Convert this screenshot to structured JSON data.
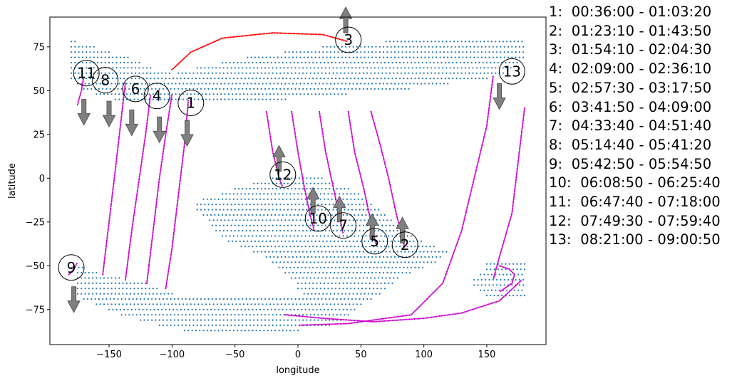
{
  "chart_data": {
    "type": "scatter",
    "xlabel": "longitude",
    "ylabel": "latitude",
    "xlim": [
      -197,
      197
    ],
    "ylim": [
      -95,
      92
    ],
    "xticks": [
      -150,
      -100,
      -50,
      0,
      50,
      100,
      150
    ],
    "yticks": [
      75,
      50,
      25,
      0,
      -25,
      -50,
      -75
    ],
    "grid": false,
    "colors": {
      "coverage": "#1f77b4",
      "track": "#cc00cc",
      "highlight_track": "#ff0000",
      "arrow": "#808080"
    },
    "coverage_regions": [
      {
        "name": "north-band",
        "lat_rows": [
          [
            78,
            -180,
            -175
          ],
          [
            78,
            70,
            180
          ],
          [
            75,
            -180,
            -160
          ],
          [
            75,
            20,
            180
          ],
          [
            72,
            -180,
            -150
          ],
          [
            72,
            -10,
            180
          ],
          [
            69,
            -180,
            -135
          ],
          [
            69,
            -40,
            180
          ],
          [
            66,
            -180,
            -125
          ],
          [
            66,
            -60,
            175
          ],
          [
            63,
            -180,
            -115
          ],
          [
            63,
            -80,
            170
          ],
          [
            60,
            -180,
            -100
          ],
          [
            60,
            -95,
            165
          ],
          [
            57,
            -180,
            150
          ],
          [
            54,
            -175,
            120
          ],
          [
            51,
            -170,
            90
          ],
          [
            48,
            -160,
            40
          ],
          [
            45,
            -145,
            -10
          ]
        ]
      },
      {
        "name": "south-region",
        "lat_rows": [
          [
            0,
            -20,
            20
          ],
          [
            -3,
            -35,
            30
          ],
          [
            -6,
            -50,
            40
          ],
          [
            -9,
            -60,
            50
          ],
          [
            -12,
            -75,
            55
          ],
          [
            -15,
            -80,
            60
          ],
          [
            -18,
            -80,
            65
          ],
          [
            -21,
            -75,
            70
          ],
          [
            -24,
            -70,
            75
          ],
          [
            -27,
            -68,
            80
          ],
          [
            -30,
            -65,
            85
          ],
          [
            -33,
            -60,
            90
          ],
          [
            -36,
            -55,
            100
          ],
          [
            -39,
            -45,
            110
          ],
          [
            -42,
            -35,
            120
          ],
          [
            -45,
            -25,
            115
          ],
          [
            -48,
            -20,
            110
          ],
          [
            -51,
            -180,
            -170
          ],
          [
            -51,
            -15,
            100
          ],
          [
            -54,
            -175,
            -160
          ],
          [
            -54,
            -10,
            90
          ],
          [
            -57,
            -175,
            -140
          ],
          [
            -57,
            -5,
            80
          ],
          [
            -60,
            -175,
            -120
          ],
          [
            -60,
            0,
            75
          ],
          [
            -63,
            -175,
            -110
          ],
          [
            -63,
            0,
            70
          ],
          [
            -66,
            -175,
            -100
          ],
          [
            -66,
            5,
            65
          ],
          [
            -69,
            -170,
            60
          ],
          [
            -72,
            -160,
            50
          ],
          [
            -75,
            -150,
            45
          ],
          [
            -78,
            -140,
            40
          ],
          [
            -81,
            -125,
            35
          ],
          [
            -84,
            -110,
            25
          ],
          [
            -87,
            -90,
            0
          ]
        ]
      },
      {
        "name": "southeast-patch",
        "lat_rows": [
          [
            -49,
            150,
            180
          ],
          [
            -52,
            150,
            180
          ],
          [
            -55,
            145,
            180
          ],
          [
            -58,
            140,
            180
          ],
          [
            -61,
            140,
            180
          ],
          [
            -64,
            145,
            180
          ],
          [
            -67,
            150,
            180
          ]
        ]
      }
    ],
    "tracks": [
      {
        "id": "1",
        "time": "00:36:00 - 01:03:20",
        "points": [
          [
            -105,
            -63
          ],
          [
            -100,
            -40
          ],
          [
            -95,
            -10
          ],
          [
            -90,
            20
          ],
          [
            -87,
            45
          ]
        ],
        "label_at": [
          -85,
          43
        ],
        "arrow": {
          "at": [
            -88,
            33
          ],
          "dir": "down"
        }
      },
      {
        "id": "2",
        "time": "01:23:10 - 01:43:50",
        "points": [
          [
            58,
            38
          ],
          [
            65,
            20
          ],
          [
            72,
            0
          ],
          [
            78,
            -20
          ],
          [
            85,
            -40
          ]
        ],
        "label_at": [
          85,
          -38
        ],
        "arrow": {
          "at": [
            83,
            -37
          ],
          "dir": "up"
        }
      },
      {
        "id": "3",
        "time": "01:54:10 - 02:04:30",
        "color_key": "highlight_track",
        "points": [
          [
            -100,
            62
          ],
          [
            -85,
            72
          ],
          [
            -60,
            80
          ],
          [
            -20,
            83
          ],
          [
            20,
            82
          ],
          [
            40,
            78
          ]
        ],
        "label_at": [
          40,
          79
        ],
        "arrow": {
          "at": [
            38,
            83
          ],
          "dir": "up"
        }
      },
      {
        "id": "4",
        "time": "02:09:00 - 02:36:10",
        "points": [
          [
            -120,
            -60
          ],
          [
            -115,
            -30
          ],
          [
            -110,
            0
          ],
          [
            -105,
            25
          ],
          [
            -100,
            48
          ]
        ],
        "label_at": [
          -112,
          47
        ],
        "arrow": {
          "at": [
            -110,
            35
          ],
          "dir": "down"
        }
      },
      {
        "id": "5",
        "time": "02:57:30 - 03:17:50",
        "points": [
          [
            40,
            38
          ],
          [
            45,
            15
          ],
          [
            52,
            -5
          ],
          [
            58,
            -25
          ],
          [
            62,
            -38
          ]
        ],
        "label_at": [
          61,
          -36
        ],
        "arrow": {
          "at": [
            59,
            -35
          ],
          "dir": "up"
        }
      },
      {
        "id": "6",
        "time": "03:41:50 - 04:09:00",
        "points": [
          [
            -137,
            -58
          ],
          [
            -132,
            -30
          ],
          [
            -126,
            0
          ],
          [
            -121,
            25
          ],
          [
            -117,
            48
          ]
        ],
        "label_at": [
          -129,
          51
        ],
        "arrow": {
          "at": [
            -132,
            39
          ],
          "dir": "down"
        }
      },
      {
        "id": "7",
        "time": "04:33:40 - 04:51:40",
        "points": [
          [
            17,
            38
          ],
          [
            22,
            15
          ],
          [
            28,
            -5
          ],
          [
            33,
            -22
          ],
          [
            36,
            -32
          ]
        ],
        "label_at": [
          36,
          -27
        ],
        "arrow": {
          "at": [
            33,
            -25
          ],
          "dir": "up"
        }
      },
      {
        "id": "8",
        "time": "05:14:40 - 05:41:20",
        "points": [
          [
            -155,
            -55
          ],
          [
            -150,
            -25
          ],
          [
            -145,
            5
          ],
          [
            -141,
            30
          ],
          [
            -137,
            55
          ]
        ],
        "label_at": [
          -153,
          56
        ],
        "arrow": {
          "at": [
            -150,
            44
          ],
          "dir": "down"
        }
      },
      {
        "id": "9",
        "time": "05:42:50 - 05:54:50",
        "points": [
          [
            -182,
            -55
          ],
          [
            -178,
            -52
          ],
          [
            -175,
            -48
          ]
        ],
        "label_at": [
          -180,
          -51
        ],
        "arrow": {
          "at": [
            -178,
            -62
          ],
          "dir": "down"
        }
      },
      {
        "id": "10",
        "time": "06:08:50 - 06:25:40",
        "points": [
          [
            -5,
            38
          ],
          [
            0,
            15
          ],
          [
            5,
            -5
          ],
          [
            10,
            -22
          ],
          [
            13,
            -30
          ]
        ],
        "label_at": [
          16,
          -23
        ],
        "arrow": {
          "at": [
            12,
            -20
          ],
          "dir": "up"
        }
      },
      {
        "id": "11",
        "time": "06:47:40 - 07:18:00",
        "points": [
          [
            -175,
            42
          ],
          [
            -172,
            50
          ],
          [
            -170,
            58
          ]
        ],
        "label_at": [
          -168,
          60
        ],
        "arrow": {
          "at": [
            -170,
            45
          ],
          "dir": "down"
        }
      },
      {
        "id": "12",
        "time": "07:49:30 - 07:59:40",
        "points": [
          [
            -25,
            38
          ],
          [
            -20,
            15
          ],
          [
            -15,
            0
          ],
          [
            -12,
            -5
          ]
        ],
        "label_at": [
          -12,
          2
        ],
        "arrow": {
          "at": [
            -15,
            4
          ],
          "dir": "up"
        }
      },
      {
        "id": "13",
        "time": "08:21:00 - 09:00:50",
        "points": [
          [
            155,
            58
          ],
          [
            150,
            30
          ],
          [
            140,
            0
          ],
          [
            130,
            -30
          ],
          [
            115,
            -60
          ],
          [
            90,
            -78
          ],
          [
            40,
            -83
          ],
          [
            0,
            -84
          ]
        ],
        "label_at": [
          170,
          61
        ],
        "arrow": {
          "at": [
            160,
            54
          ],
          "dir": "down"
        }
      }
    ],
    "extra_tracks": [
      {
        "color_key": "track",
        "points": [
          [
            180,
            40
          ],
          [
            175,
            10
          ],
          [
            170,
            -20
          ],
          [
            160,
            -45
          ],
          [
            155,
            -58
          ]
        ]
      },
      {
        "color_key": "track",
        "points": [
          [
            160,
            -50
          ],
          [
            168,
            -52
          ],
          [
            172,
            -55
          ],
          [
            170,
            -60
          ],
          [
            160,
            -65
          ]
        ]
      },
      {
        "color_key": "track",
        "points": [
          [
            -10,
            -78
          ],
          [
            20,
            -80
          ],
          [
            60,
            -82
          ],
          [
            100,
            -80
          ],
          [
            130,
            -77
          ],
          [
            160,
            -70
          ],
          [
            178,
            -58
          ]
        ]
      }
    ]
  },
  "legend": [
    {
      "text": "1:  00:36:00 - 01:03:20"
    },
    {
      "text": "2:  01:23:10 - 01:43:50"
    },
    {
      "text": "3:  01:54:10 - 02:04:30"
    },
    {
      "text": "4:  02:09:00 - 02:36:10"
    },
    {
      "text": "5:  02:57:30 - 03:17:50"
    },
    {
      "text": "6:  03:41:50 - 04:09:00"
    },
    {
      "text": "7:  04:33:40 - 04:51:40"
    },
    {
      "text": "8:  05:14:40 - 05:41:20"
    },
    {
      "text": "9:  05:42:50 - 05:54:50"
    },
    {
      "text": "10:  06:08:50 - 06:25:40"
    },
    {
      "text": "11:  06:47:40 - 07:18:00"
    },
    {
      "text": "12:  07:49:30 - 07:59:40"
    },
    {
      "text": "13:  08:21:00 - 09:00:50"
    }
  ]
}
